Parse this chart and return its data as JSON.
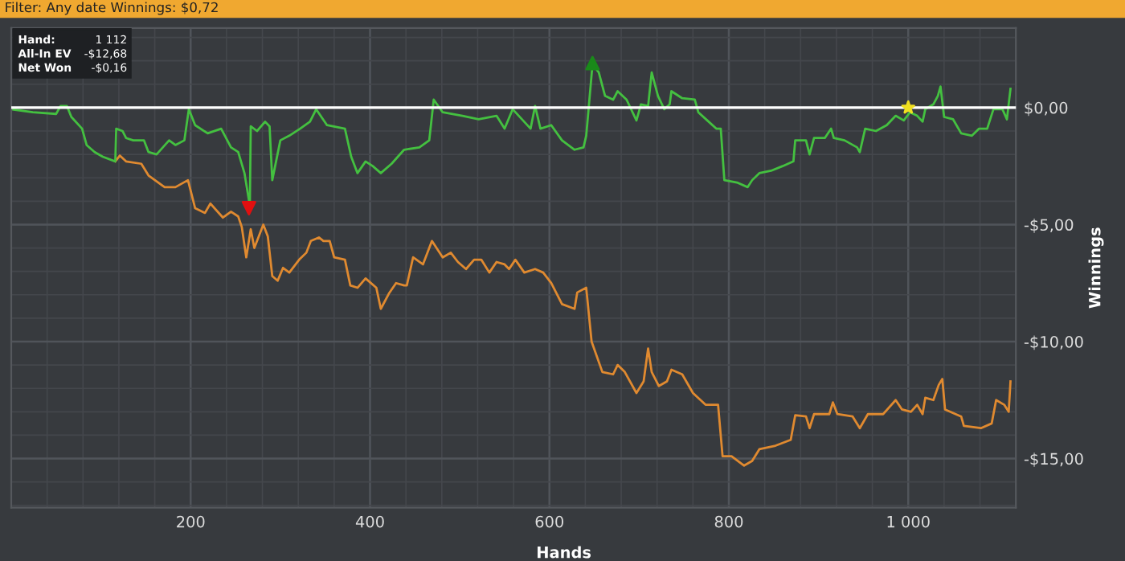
{
  "chart_data": {
    "type": "line",
    "xlabel": "Hands",
    "ylabel": "Winnings",
    "annotations": [
      "Filter: Any date Winnings: $0,72",
      "Hand:\t1 112",
      "All-In EV\t-$12,68",
      "Net Won\t-$0,16"
    ],
    "xlim": [
      0,
      1120
    ],
    "ylim": [
      -17.1,
      3.4
    ],
    "xticks": [
      200,
      400,
      600,
      800,
      {
        "value": 1000,
        "label": "1 000"
      }
    ],
    "yticks": [
      {
        "value": 0,
        "label": "$0,00"
      },
      {
        "value": -5,
        "label": "-$5,00"
      },
      {
        "value": -10,
        "label": "-$10,00"
      },
      {
        "value": -15,
        "label": "-$15,00"
      }
    ],
    "grid": true,
    "legend": false,
    "marker": "none",
    "line_style": "solid",
    "ref_lines": [
      {
        "axis": "y",
        "value": 0,
        "color": "#ffffff"
      }
    ],
    "series": [
      {
        "color": "#e08a30",
        "x": [
          116,
          121,
          128,
          145,
          153,
          171,
          183,
          197,
          205,
          216,
          222,
          236,
          245,
          253,
          257,
          262,
          267,
          271,
          276,
          281,
          286,
          291,
          297,
          303,
          310,
          321,
          329,
          334,
          343,
          348,
          355,
          360,
          372,
          378,
          386,
          395,
          407,
          412,
          421,
          429,
          438,
          441,
          448,
          459,
          466,
          469,
          481,
          490,
          498,
          507,
          516,
          524,
          533,
          541,
          550,
          555,
          562,
          572,
          584,
          593,
          602,
          614,
          628,
          631,
          641,
          647,
          659,
          671,
          676,
          684,
          697,
          705,
          710,
          714,
          722,
          731,
          736,
          748,
          760,
          774,
          788,
          793,
          803,
          817,
          826,
          834,
          852,
          869,
          874,
          886,
          890,
          895,
          912,
          916,
          921,
          938,
          946,
          955,
          972,
          986,
          993,
          1003,
          1010,
          1016,
          1019,
          1028,
          1034,
          1038,
          1041,
          1059,
          1062,
          1081,
          1093,
          1098,
          1107,
          1112,
          1114
        ],
        "values": [
          -2.3,
          -2.05,
          -2.3,
          -2.4,
          -2.9,
          -3.4,
          -3.4,
          -3.1,
          -4.3,
          -4.5,
          -4.1,
          -4.7,
          -4.45,
          -4.65,
          -5.1,
          -6.4,
          -5.2,
          -6.0,
          -5.5,
          -5.0,
          -5.5,
          -7.2,
          -7.4,
          -6.85,
          -7.05,
          -6.5,
          -6.2,
          -5.7,
          -5.55,
          -5.7,
          -5.7,
          -6.4,
          -6.5,
          -7.6,
          -7.7,
          -7.3,
          -7.7,
          -8.6,
          -7.95,
          -7.5,
          -7.6,
          -7.6,
          -6.4,
          -6.7,
          -6.0,
          -5.7,
          -6.4,
          -6.2,
          -6.6,
          -6.9,
          -6.5,
          -6.5,
          -7.05,
          -6.6,
          -6.7,
          -6.9,
          -6.5,
          -7.05,
          -6.9,
          -7.05,
          -7.5,
          -8.4,
          -8.6,
          -7.9,
          -7.7,
          -10.0,
          -11.3,
          -11.4,
          -11.0,
          -11.3,
          -12.2,
          -11.7,
          -10.3,
          -11.3,
          -11.9,
          -11.7,
          -11.2,
          -11.4,
          -12.2,
          -12.7,
          -12.7,
          -14.9,
          -14.9,
          -15.3,
          -15.1,
          -14.6,
          -14.45,
          -14.2,
          -13.15,
          -13.2,
          -13.7,
          -13.1,
          -13.1,
          -12.6,
          -13.1,
          -13.2,
          -13.7,
          -13.1,
          -13.1,
          -12.5,
          -12.9,
          -13.0,
          -12.7,
          -13.1,
          -12.4,
          -12.5,
          -11.85,
          -11.6,
          -12.9,
          -13.2,
          -13.6,
          -13.7,
          -13.5,
          -12.5,
          -12.7,
          -13.0,
          -11.7
        ]
      },
      {
        "color": "#44c040",
        "x": [
          0,
          24,
          50,
          55,
          62,
          67,
          79,
          84,
          93,
          102,
          116,
          117,
          124,
          128,
          136,
          148,
          153,
          162,
          176,
          183,
          193,
          198,
          205,
          219,
          234,
          245,
          253,
          260,
          266,
          267,
          274,
          283,
          288,
          291,
          300,
          310,
          322,
          333,
          340,
          352,
          372,
          379,
          386,
          395,
          403,
          412,
          424,
          438,
          455,
          466,
          471,
          481,
          503,
          521,
          541,
          550,
          559,
          579,
          584,
          590,
          602,
          614,
          628,
          638,
          641,
          648,
          655,
          662,
          671,
          676,
          686,
          697,
          702,
          710,
          714,
          721,
          728,
          734,
          736,
          748,
          762,
          766,
          776,
          786,
          791,
          795,
          809,
          821,
          826,
          834,
          847,
          860,
          872,
          874,
          886,
          890,
          895,
          907,
          914,
          917,
          929,
          943,
          946,
          952,
          964,
          976,
          986,
          995,
          1002,
          1010,
          1016,
          1019,
          1028,
          1033,
          1036,
          1040,
          1050,
          1059,
          1071,
          1079,
          1088,
          1095,
          1105,
          1110,
          1114
        ],
        "values": [
          -0.07,
          -0.2,
          -0.27,
          0.07,
          0.07,
          -0.4,
          -0.9,
          -1.6,
          -1.9,
          -2.1,
          -2.3,
          -0.9,
          -1.0,
          -1.3,
          -1.4,
          -1.4,
          -1.9,
          -2.0,
          -1.4,
          -1.6,
          -1.4,
          -0.07,
          -0.75,
          -1.1,
          -0.9,
          -1.7,
          -1.9,
          -2.8,
          -4.2,
          -0.8,
          -1.0,
          -0.6,
          -0.8,
          -3.1,
          -1.4,
          -1.2,
          -0.9,
          -0.6,
          -0.07,
          -0.75,
          -0.9,
          -2.1,
          -2.8,
          -2.3,
          -2.5,
          -2.8,
          -2.4,
          -1.8,
          -1.7,
          -1.4,
          0.34,
          -0.2,
          -0.35,
          -0.5,
          -0.35,
          -0.9,
          -0.07,
          -0.9,
          0.07,
          -0.9,
          -0.75,
          -1.4,
          -1.8,
          -1.7,
          -1.2,
          1.85,
          1.5,
          0.5,
          0.34,
          0.7,
          0.34,
          -0.55,
          0.14,
          0.07,
          1.5,
          0.5,
          -0.07,
          0.14,
          0.7,
          0.4,
          0.34,
          -0.2,
          -0.55,
          -0.9,
          -0.9,
          -3.1,
          -3.2,
          -3.4,
          -3.1,
          -2.8,
          -2.7,
          -2.5,
          -2.3,
          -1.4,
          -1.4,
          -2.0,
          -1.3,
          -1.3,
          -0.9,
          -1.3,
          -1.4,
          -1.7,
          -1.9,
          -0.9,
          -1.0,
          -0.75,
          -0.35,
          -0.55,
          -0.2,
          -0.35,
          -0.6,
          -0.07,
          0.14,
          0.5,
          0.9,
          -0.4,
          -0.5,
          -1.1,
          -1.2,
          -0.9,
          -0.9,
          -0.07,
          -0.07,
          -0.5,
          0.8
        ]
      },
      {
        "type": "scatter",
        "marker": "triangle_down",
        "color": "#e01010",
        "x": [
          265
        ],
        "values": [
          -4.3
        ]
      },
      {
        "type": "scatter",
        "marker": "triangle",
        "color": "#1a8a1a",
        "x": [
          648
        ],
        "values": [
          1.9
        ]
      },
      {
        "type": "scatter",
        "marker": "star",
        "color": "#f0e020",
        "x": [
          1000
        ],
        "values": [
          0
        ]
      }
    ]
  }
}
